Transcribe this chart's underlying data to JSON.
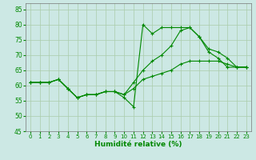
{
  "xlabel": "Humidité relative (%)",
  "background_color": "#cce8e4",
  "grid_color": "#aaccaa",
  "line_color": "#008800",
  "xlim": [
    -0.5,
    23.5
  ],
  "ylim": [
    45,
    87
  ],
  "yticks": [
    45,
    50,
    55,
    60,
    65,
    70,
    75,
    80,
    85
  ],
  "xticks": [
    0,
    1,
    2,
    3,
    4,
    5,
    6,
    7,
    8,
    9,
    10,
    11,
    12,
    13,
    14,
    15,
    16,
    17,
    18,
    19,
    20,
    21,
    22,
    23
  ],
  "series1_x": [
    0,
    1,
    2,
    3,
    4,
    5,
    6,
    7,
    8,
    9,
    10,
    11,
    12,
    13,
    14,
    15,
    16,
    17,
    18,
    19,
    20,
    21,
    22,
    23
  ],
  "series1_y": [
    61,
    61,
    61,
    62,
    59,
    56,
    57,
    57,
    58,
    58,
    56,
    53,
    80,
    77,
    79,
    79,
    79,
    79,
    76,
    71,
    69,
    66,
    66,
    66
  ],
  "series2_x": [
    0,
    1,
    2,
    3,
    4,
    5,
    6,
    7,
    8,
    9,
    10,
    11,
    12,
    13,
    14,
    15,
    16,
    17,
    18,
    19,
    20,
    21,
    22,
    23
  ],
  "series2_y": [
    61,
    61,
    61,
    62,
    59,
    56,
    57,
    57,
    58,
    58,
    57,
    61,
    65,
    68,
    70,
    73,
    78,
    79,
    76,
    72,
    71,
    69,
    66,
    66
  ],
  "series3_x": [
    0,
    1,
    2,
    3,
    4,
    5,
    6,
    7,
    8,
    9,
    10,
    11,
    12,
    13,
    14,
    15,
    16,
    17,
    18,
    19,
    20,
    21,
    22,
    23
  ],
  "series3_y": [
    61,
    61,
    61,
    62,
    59,
    56,
    57,
    57,
    58,
    58,
    57,
    59,
    62,
    63,
    64,
    65,
    67,
    68,
    68,
    68,
    68,
    67,
    66,
    66
  ]
}
